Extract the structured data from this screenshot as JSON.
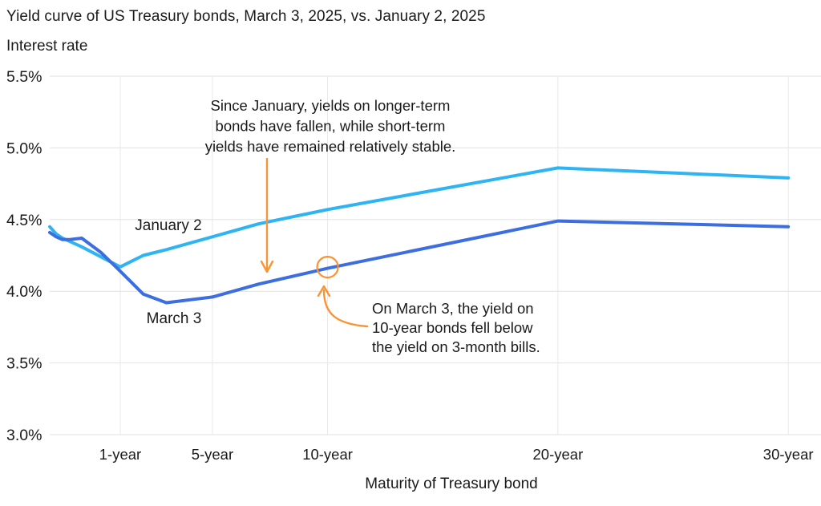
{
  "title": "Yield curve of US Treasury bonds, March 3, 2025, vs. January 2, 2025",
  "chart_data": {
    "type": "line",
    "title": "Yield curve of US Treasury bonds, March 3, 2025, vs. January 2, 2025",
    "ylabel": "Interest rate",
    "xlabel": "Maturity of Treasury bond",
    "ylim": [
      3.0,
      5.5
    ],
    "grid": true,
    "legend_position": "inline-labels",
    "y_ticks": [
      {
        "value": 5.5,
        "label": "5.5%"
      },
      {
        "value": 5.0,
        "label": "5.0%"
      },
      {
        "value": 4.5,
        "label": "4.5%"
      },
      {
        "value": 4.0,
        "label": "4.0%"
      },
      {
        "value": 3.5,
        "label": "3.5%"
      },
      {
        "value": 3.0,
        "label": "3.0%"
      }
    ],
    "x_ticks": [
      {
        "months": 12,
        "label": "1-year"
      },
      {
        "months": 60,
        "label": "5-year"
      },
      {
        "months": 120,
        "label": "10-year"
      },
      {
        "months": 240,
        "label": "20-year"
      },
      {
        "months": 360,
        "label": "30-year"
      }
    ],
    "x_months": [
      1,
      2,
      3,
      4,
      6,
      9,
      12,
      24,
      36,
      60,
      84,
      120,
      240,
      360
    ],
    "series": [
      {
        "name": "January 2",
        "color": "#2EB4F2",
        "values": [
          4.45,
          4.4,
          4.37,
          4.35,
          4.31,
          4.24,
          4.17,
          4.25,
          4.29,
          4.38,
          4.47,
          4.57,
          4.86,
          4.79
        ]
      },
      {
        "name": "March 3",
        "color": "#3C6EE0",
        "values": [
          4.41,
          4.38,
          4.36,
          4.36,
          4.37,
          4.27,
          4.14,
          3.98,
          3.92,
          3.96,
          4.05,
          4.16,
          4.49,
          4.45
        ]
      }
    ],
    "annotations": [
      {
        "id": "short-term-stability-note",
        "align": "center",
        "lines": [
          "Since January, yields on longer-term",
          "bonds have fallen, while short-term",
          "yields have remained relatively stable."
        ]
      },
      {
        "id": "inversion-note",
        "align": "left",
        "lines": [
          "On March 3, the yield on",
          "10-year bonds fell below",
          "the yield on 3-month bills."
        ]
      }
    ],
    "annotation_color": "#F99433",
    "highlight_point": {
      "series": "March 3",
      "months": 120,
      "value": 4.16
    }
  }
}
